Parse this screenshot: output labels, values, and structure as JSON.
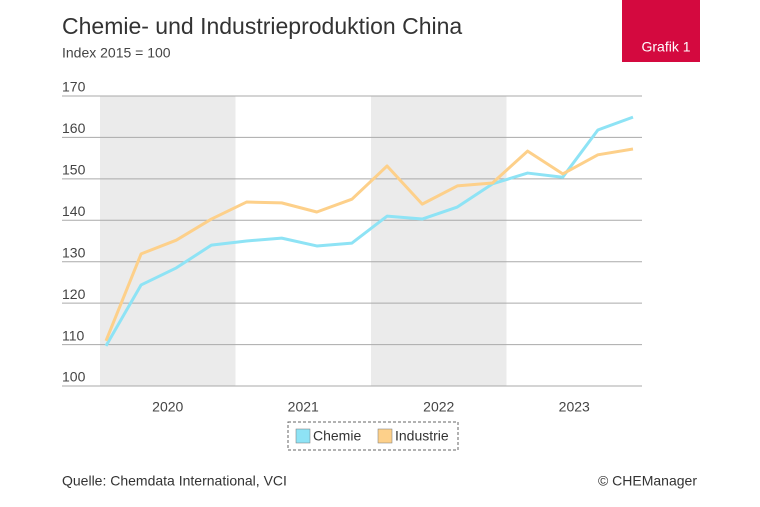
{
  "chart_data": {
    "type": "line",
    "title": "Chemie- und Industrieproduktion China",
    "subtitle": "Index 2015 = 100",
    "badge": "Grafik 1",
    "source": "Quelle: Chemdata International, VCI",
    "credit": "© CHEManager",
    "categories": [
      null,
      null,
      null,
      null,
      null,
      null,
      null,
      null,
      null,
      null,
      null,
      null,
      null,
      null,
      null,
      null
    ],
    "groups": [
      "2020",
      "2021",
      "2022",
      "2023"
    ],
    "series": [
      {
        "name": "Chemie",
        "color": "#8ee3f5",
        "values": [
          109.7,
          124.4,
          128.5,
          134.0,
          135.0,
          135.7,
          133.8,
          134.5,
          141.0,
          140.3,
          143.2,
          148.8,
          151.4,
          150.4,
          161.8,
          164.9
        ]
      },
      {
        "name": "Industrie",
        "color": "#fdd08a",
        "values": [
          110.9,
          131.9,
          135.2,
          140.3,
          144.4,
          144.2,
          142.0,
          145.1,
          153.1,
          143.9,
          148.3,
          149.0,
          156.7,
          151.2,
          155.8,
          157.2
        ]
      }
    ],
    "ylim": [
      100,
      170
    ],
    "yticks": [
      100,
      110,
      120,
      130,
      140,
      150,
      160,
      170
    ],
    "grid": true,
    "band_color": "#ebebeb",
    "legend": "bottom"
  }
}
